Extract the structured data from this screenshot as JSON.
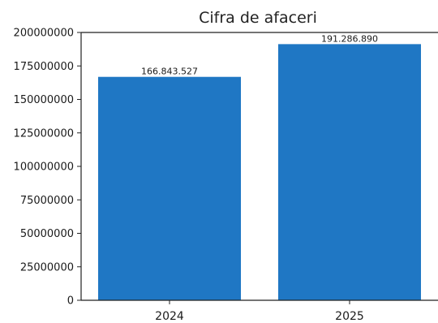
{
  "chart_data": {
    "type": "bar",
    "title": "Cifra de afaceri",
    "categories": [
      "2024",
      "2025"
    ],
    "values": [
      166843527,
      191286890
    ],
    "value_labels": [
      "166.843.527",
      "191.286.890"
    ],
    "xlabel": "",
    "ylabel": "",
    "ylim": [
      0,
      200000000
    ],
    "yticks": [
      0,
      25000000,
      50000000,
      75000000,
      100000000,
      125000000,
      150000000,
      175000000,
      200000000
    ],
    "ytick_labels": [
      "0",
      "25000000",
      "50000000",
      "75000000",
      "100000000",
      "125000000",
      "150000000",
      "175000000",
      "200000000"
    ],
    "grid": false,
    "legend": "none",
    "colors": {
      "bar": "#1f77c4",
      "axis": "#222222",
      "text": "#1a1a1a"
    }
  }
}
